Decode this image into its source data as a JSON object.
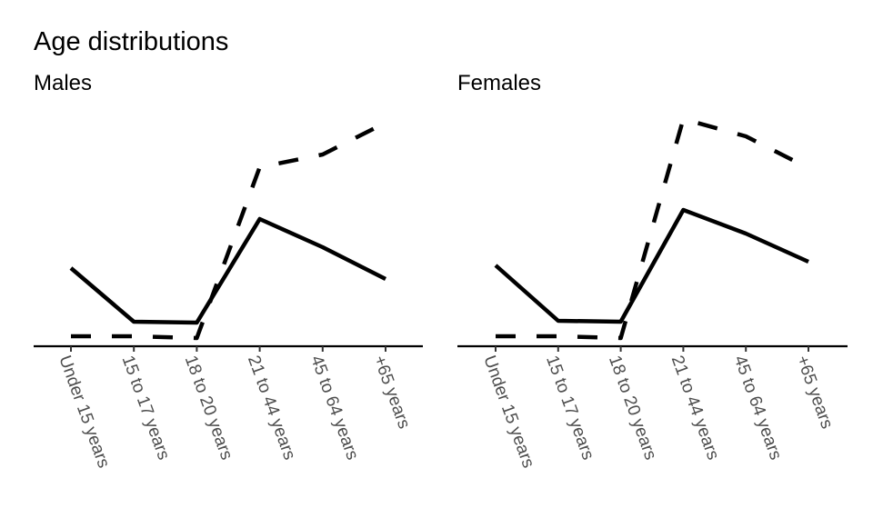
{
  "chart_data": [
    {
      "type": "line",
      "title": "Age distributions",
      "subtitle": "Males",
      "xlabel": "",
      "ylabel": "",
      "categories": [
        "Under 15 years",
        "15 to 17 years",
        "18 to 20 years",
        "21 to 44 years",
        "45 to 64 years",
        "+65 years"
      ],
      "y_units": "relative (no y axis shown)",
      "ylim": [
        0,
        250
      ],
      "grid": false,
      "series": [
        {
          "name": "solid",
          "style": "solid",
          "values": [
            86,
            27,
            26,
            140,
            109,
            74
          ]
        },
        {
          "name": "dashed",
          "style": "dashed",
          "values": [
            11,
            11,
            9,
            197,
            211,
            246
          ]
        }
      ]
    },
    {
      "type": "line",
      "subtitle": "Females",
      "xlabel": "",
      "ylabel": "",
      "categories": [
        "Under 15 years",
        "15 to 17 years",
        "18 to 20 years",
        "21 to 44 years",
        "45 to 64 years",
        "+65 years"
      ],
      "y_units": "relative (no y axis shown)",
      "ylim": [
        0,
        250
      ],
      "grid": false,
      "series": [
        {
          "name": "solid",
          "style": "solid",
          "values": [
            89,
            28,
            27,
            150,
            124,
            93
          ]
        },
        {
          "name": "dashed",
          "style": "dashed",
          "values": [
            11,
            11,
            9,
            250,
            231,
            196
          ]
        }
      ]
    }
  ]
}
